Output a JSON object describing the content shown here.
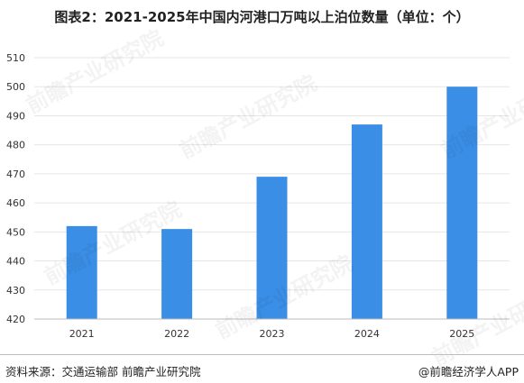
{
  "title": "图表2：2021-2025年中国内河港口万吨以上泊位数量（单位：个）",
  "source": "资料来源：交通运输部  前瞻产业研究院",
  "brand": "@前瞻经济学人APP",
  "watermark": "前瞻产业研究院",
  "colors": {
    "bar": "#3a8ee6",
    "grid": "#e6e6e6",
    "axis": "#bbbbbb",
    "tick": "#333333"
  },
  "chart_data": {
    "type": "bar",
    "title": "图表2：2021-2025年中国内河港口万吨以上泊位数量（单位：个）",
    "categories": [
      "2021",
      "2022",
      "2023",
      "2024",
      "2025"
    ],
    "values": [
      452,
      451,
      469,
      487,
      500
    ],
    "ylim": [
      420,
      510
    ],
    "yticks": [
      420,
      430,
      440,
      450,
      460,
      470,
      480,
      490,
      500,
      510
    ],
    "grid": true,
    "legend": "none"
  }
}
